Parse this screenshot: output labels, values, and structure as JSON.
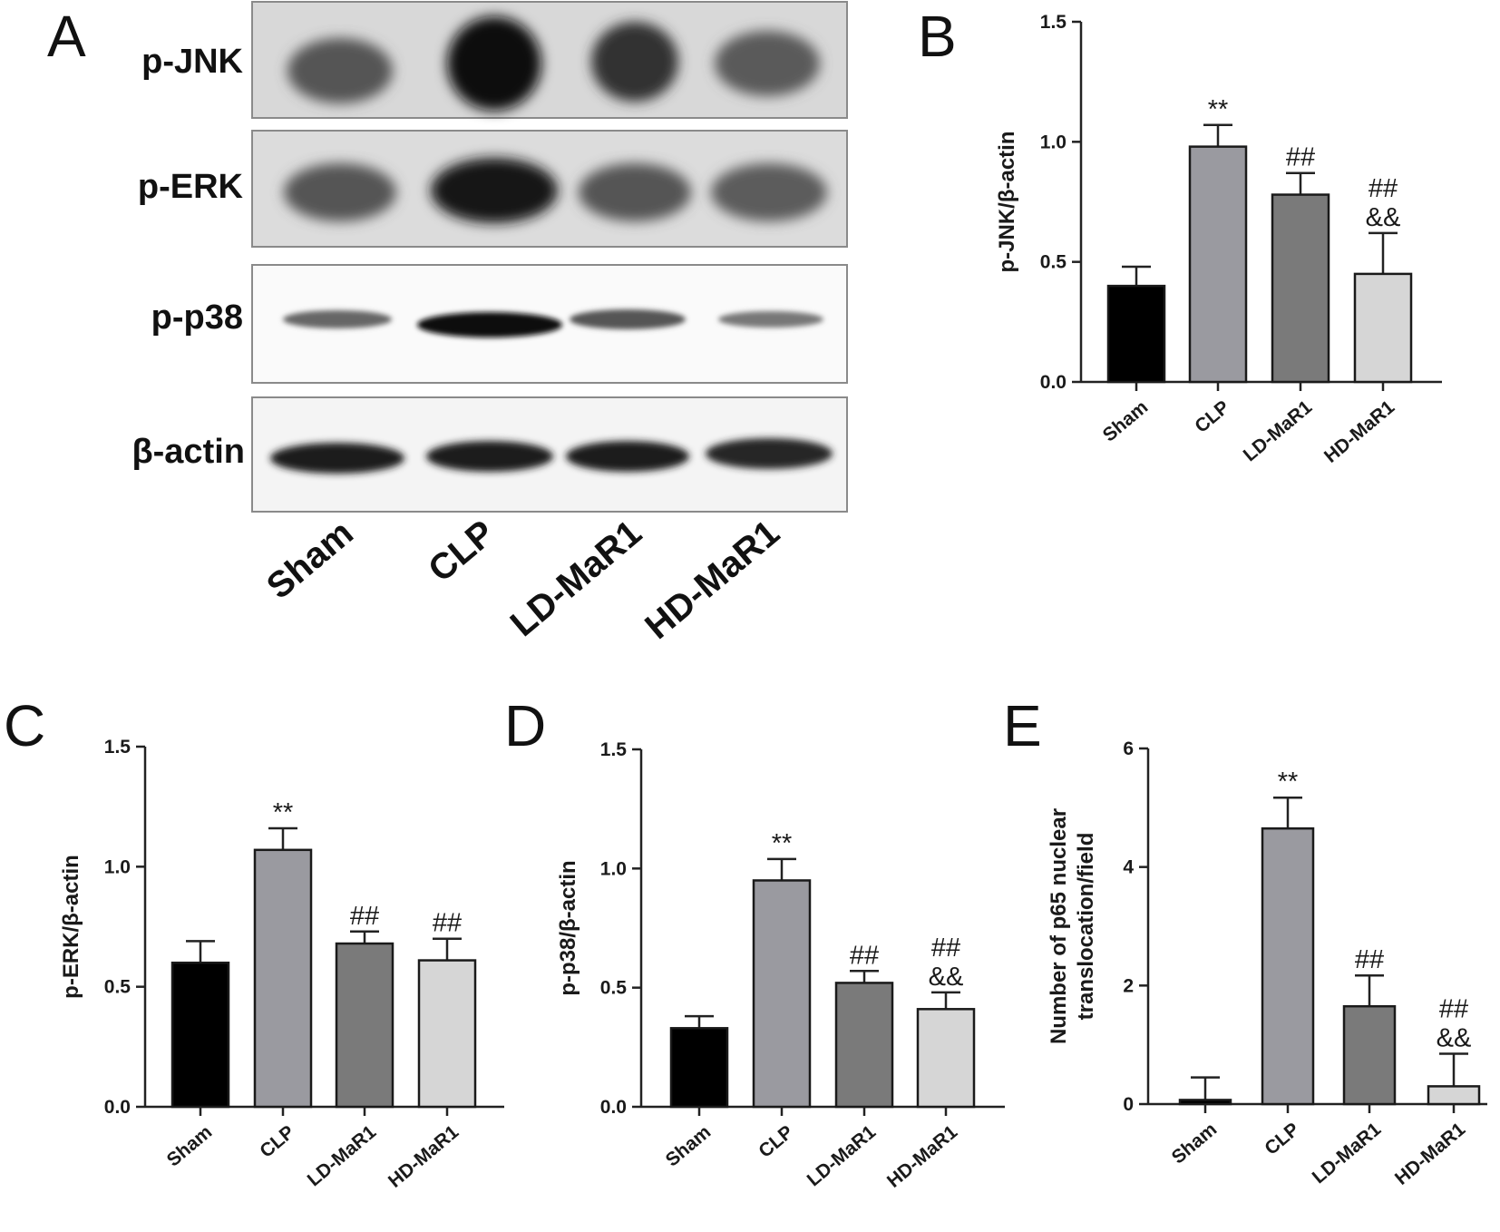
{
  "panels": {
    "A": {
      "letter": "A",
      "rows": [
        "p-JNK",
        "p-ERK",
        "p-p38",
        "β-actin"
      ],
      "lanes": [
        "Sham",
        "CLP",
        "LD-MaR1",
        "HD-MaR1"
      ]
    }
  },
  "colors": {
    "Sham": "#000000",
    "CLP": "#9a9aa0",
    "LD-MaR1": "#7a7a7a",
    "HD-MaR1": "#d6d6d6"
  },
  "chart_data": [
    {
      "panel": "B",
      "type": "bar",
      "categories": [
        "Sham",
        "CLP",
        "LD-MaR1",
        "HD-MaR1"
      ],
      "values": [
        0.4,
        0.98,
        0.78,
        0.45
      ],
      "errors": [
        0.08,
        0.09,
        0.09,
        0.17
      ],
      "annotations": [
        [],
        [
          "**"
        ],
        [
          "##"
        ],
        [
          "##",
          "&&"
        ]
      ],
      "ylabel": "p-JNK/β-actin",
      "ylim": [
        0,
        1.5
      ],
      "yticks": [
        "0.0",
        "0.5",
        "1.0",
        "1.5"
      ],
      "yticks_values": [
        0,
        0.5,
        1.0,
        1.5
      ]
    },
    {
      "panel": "C",
      "type": "bar",
      "categories": [
        "Sham",
        "CLP",
        "LD-MaR1",
        "HD-MaR1"
      ],
      "values": [
        0.6,
        1.07,
        0.68,
        0.61
      ],
      "errors": [
        0.09,
        0.09,
        0.05,
        0.09
      ],
      "annotations": [
        [],
        [
          "**"
        ],
        [
          "##"
        ],
        [
          "##"
        ]
      ],
      "ylabel": "p-ERK/β-actin",
      "ylim": [
        0,
        1.5
      ],
      "yticks": [
        "0.0",
        "0.5",
        "1.0",
        "1.5"
      ],
      "yticks_values": [
        0,
        0.5,
        1.0,
        1.5
      ]
    },
    {
      "panel": "D",
      "type": "bar",
      "categories": [
        "Sham",
        "CLP",
        "LD-MaR1",
        "HD-MaR1"
      ],
      "values": [
        0.33,
        0.95,
        0.52,
        0.41
      ],
      "errors": [
        0.05,
        0.09,
        0.05,
        0.07
      ],
      "annotations": [
        [],
        [
          "**"
        ],
        [
          "##"
        ],
        [
          "##",
          "&&"
        ]
      ],
      "ylabel": "p-p38/β-actin",
      "ylim": [
        0,
        1.5
      ],
      "yticks": [
        "0.0",
        "0.5",
        "1.0",
        "1.5"
      ],
      "yticks_values": [
        0,
        0.5,
        1.0,
        1.5
      ]
    },
    {
      "panel": "E",
      "type": "bar",
      "categories": [
        "Sham",
        "CLP",
        "LD-MaR1",
        "HD-MaR1"
      ],
      "values": [
        0.07,
        4.65,
        1.65,
        0.3
      ],
      "errors": [
        0.38,
        0.52,
        0.52,
        0.55
      ],
      "annotations": [
        [],
        [
          "**"
        ],
        [
          "##"
        ],
        [
          "##",
          "&&"
        ]
      ],
      "ylabel": "Number of p65 nuclear translocation/field",
      "ylabel_lines": [
        "Number of p65 nuclear",
        "translocation/field"
      ],
      "ylim": [
        0,
        6
      ],
      "yticks": [
        "0",
        "2",
        "4",
        "6"
      ],
      "yticks_values": [
        0,
        2,
        4,
        6
      ]
    }
  ]
}
